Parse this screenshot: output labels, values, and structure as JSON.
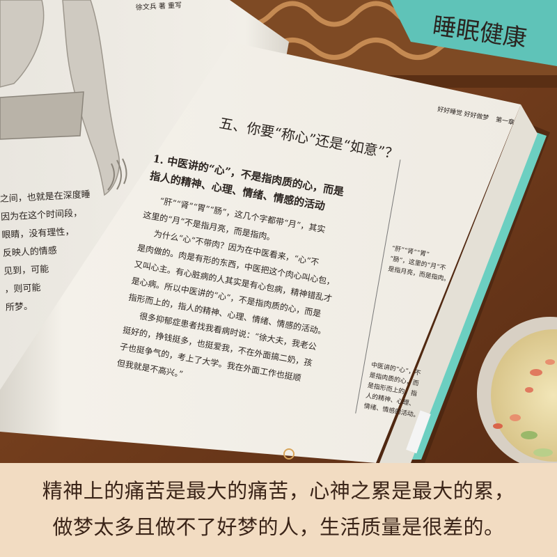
{
  "book": {
    "header_left": "好好睡觉 好好做梦",
    "header_right": "第一章",
    "spine_title": "睡眠健康",
    "section_title": "五、你要“称心”还是“如意”？",
    "subheading_lines": [
      "1. 中医讲的“心”，不是指肉质的心，而是",
      "指人的精神、心理、情绪、情感的活动"
    ],
    "body_lines": [
      "“肝”“肾”“胃”“肠”，这几个字都带“月”，其实",
      "这里的“月”不是指月亮，而是指肉。",
      "为什么“心”不带肉？因为在中医看来，“心”不",
      "是肉做的。肉是有形的东西，中医把这个肉心叫心包，",
      "又叫心主。有心脏病的人其实是有心包病，精神错乱才",
      "是心病。所以中医讲的“心”，不是指肉质的心，而是",
      "指形而上的，指人的精神、心理、情绪、情感的活动。",
      "很多抑郁症患者找我看病时说：“徐大夫，我老公",
      "挺好的，挣钱挺多，也挺爱我，不在外面搞二奶，孩",
      "子也挺争气的，考上了大学。我在外面工作也挺顺",
      "但我就是不高兴。”"
    ],
    "sidenote_top_lines": [
      "“肝”“肾”“胃”",
      "“肠”，这里的“月”不",
      "是指月亮，而是指肉。"
    ],
    "sidenote_bottom_lines": [
      "中医讲的“心”，不",
      "是指肉质的心，而",
      "是指形而上的，指",
      "人的精神、心理、",
      "情绪、情感的活动。"
    ],
    "left_page_header": "徐文兵 著 重写",
    "left_page_lines": [
      "之间，也就是在深度睡",
      "因为在这个时间段，",
      "眼睛，没有理性，",
      "反映人的情感",
      "见到，可能",
      "，则可能",
      "所梦。"
    ]
  },
  "caption": {
    "line1": "精神上的痛苦是最大的痛苦，心神之累是最大的累，",
    "line2": "做梦太多且做不了好梦的人，生活质量是很差的。"
  },
  "colors": {
    "caption_bg": "#f2dcc2",
    "caption_text": "#3a2418",
    "wood": "#7a4322",
    "teal_cover": "#5fc3b8",
    "paper": "#f4f1ea"
  }
}
